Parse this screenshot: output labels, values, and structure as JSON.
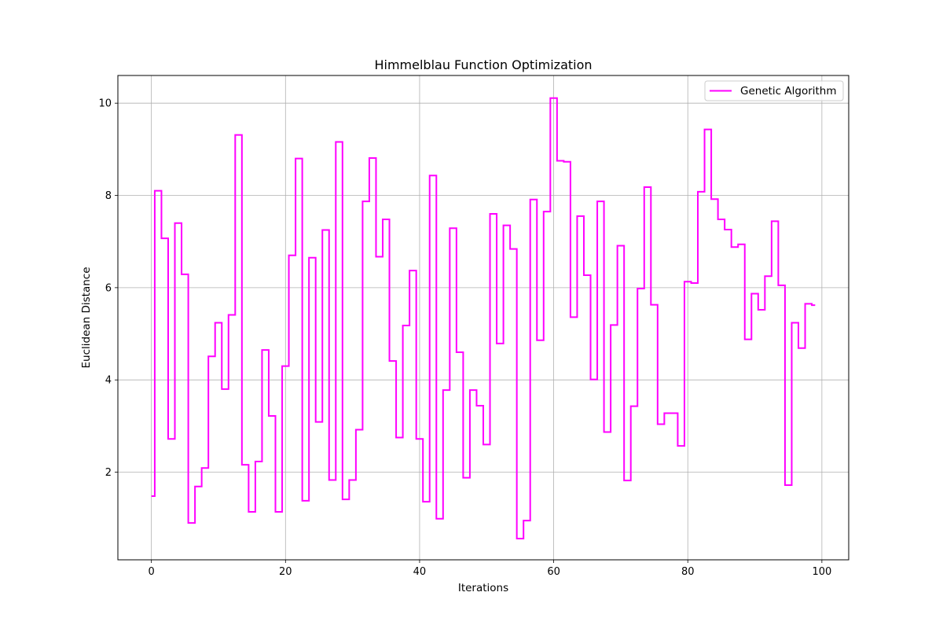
{
  "chart_data": {
    "type": "line",
    "drawstyle": "steps-mid",
    "title": "Himmelblau Function Optimization",
    "xlabel": "Iterations",
    "ylabel": "Euclidean Distance",
    "xlim": [
      -5,
      104
    ],
    "ylim": [
      0.1,
      10.6
    ],
    "xticks": [
      0,
      20,
      40,
      60,
      80,
      100
    ],
    "yticks": [
      2,
      4,
      6,
      8,
      10
    ],
    "grid": true,
    "legend_position": "upper right",
    "series": [
      {
        "name": "Genetic Algorithm",
        "color": "#ff00ff",
        "x": [
          0,
          1,
          2,
          3,
          4,
          5,
          6,
          7,
          8,
          9,
          10,
          11,
          12,
          13,
          14,
          15,
          16,
          17,
          18,
          19,
          20,
          21,
          22,
          23,
          24,
          25,
          26,
          27,
          28,
          29,
          30,
          31,
          32,
          33,
          34,
          35,
          36,
          37,
          38,
          39,
          40,
          41,
          42,
          43,
          44,
          45,
          46,
          47,
          48,
          49,
          50,
          51,
          52,
          53,
          54,
          55,
          56,
          57,
          58,
          59,
          60,
          61,
          62,
          63,
          64,
          65,
          66,
          67,
          68,
          69,
          70,
          71,
          72,
          73,
          74,
          75,
          76,
          77,
          78,
          79,
          80,
          81,
          82,
          83,
          84,
          85,
          86,
          87,
          88,
          89,
          90,
          91,
          92,
          93,
          94,
          95,
          96,
          97,
          98,
          99
        ],
        "y": [
          1.48,
          8.1,
          7.07,
          2.72,
          7.4,
          6.29,
          0.9,
          1.69,
          2.09,
          4.51,
          5.24,
          3.8,
          5.41,
          9.31,
          2.16,
          1.14,
          2.23,
          4.65,
          3.22,
          1.14,
          4.3,
          6.7,
          8.8,
          1.38,
          6.65,
          3.09,
          7.25,
          1.83,
          9.16,
          1.41,
          1.83,
          2.92,
          7.87,
          8.81,
          6.67,
          7.48,
          4.41,
          2.75,
          5.18,
          6.37,
          2.72,
          1.36,
          8.43,
          0.99,
          3.78,
          7.29,
          4.6,
          1.88,
          3.78,
          3.44,
          2.6,
          7.6,
          4.79,
          7.35,
          6.84,
          0.56,
          0.95,
          7.91,
          4.86,
          7.65,
          10.11,
          8.75,
          8.73,
          5.36,
          7.55,
          6.27,
          4.01,
          7.87,
          2.87,
          5.19,
          6.91,
          1.82,
          3.43,
          5.98,
          8.18,
          5.63,
          3.04,
          3.28,
          3.28,
          2.57,
          6.13,
          6.1,
          8.08,
          9.43,
          7.92,
          7.48,
          7.26,
          6.88,
          6.94,
          4.88,
          5.87,
          5.52,
          6.25,
          7.44,
          6.05,
          1.72,
          5.24,
          4.69,
          5.65,
          5.62
        ]
      }
    ]
  }
}
